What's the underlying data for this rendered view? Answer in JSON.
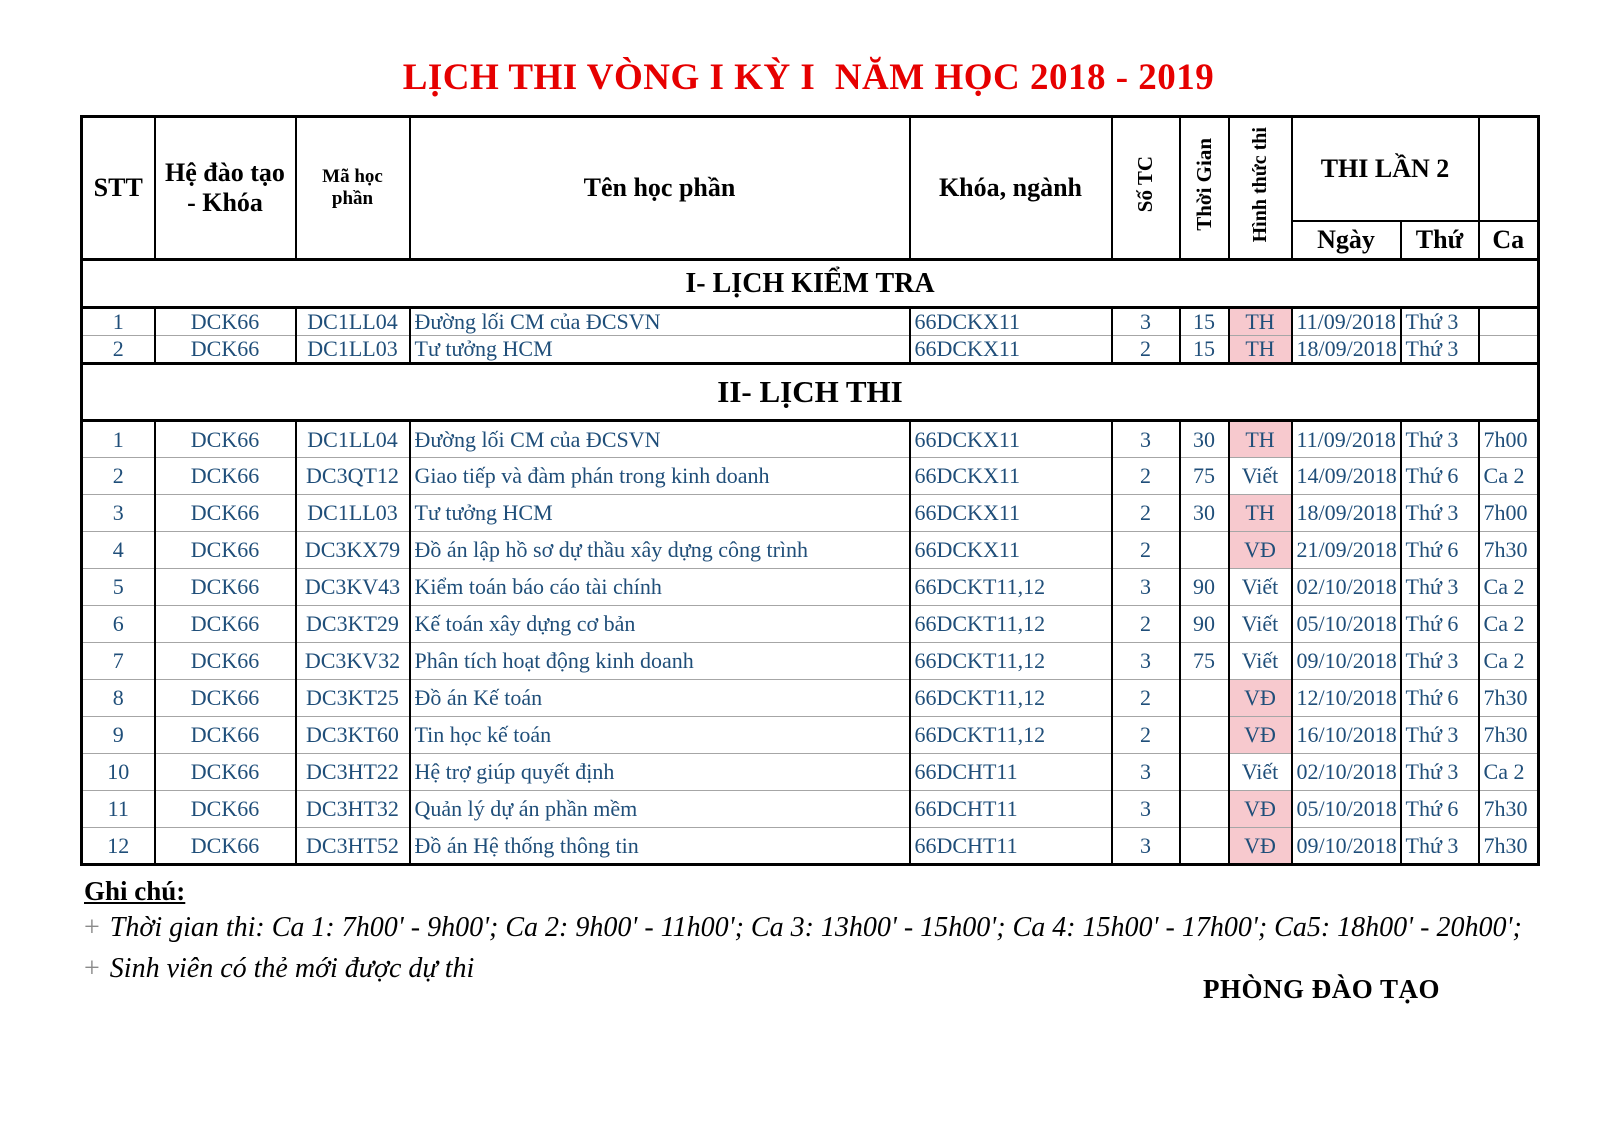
{
  "title": "LỊCH THI VÒNG I KỲ I  NĂM HỌC 2018 - 2019",
  "colors": {
    "title_red": "#e60000",
    "data_blue": "#1f4e79",
    "exam_red": "#c00000",
    "exam_pink": "#f7c9ce"
  },
  "table": {
    "headers": {
      "stt": "STT",
      "he_dao_tao_line1": "Hệ đào tạo",
      "he_dao_tao_line2": "- Khóa",
      "ma_hoc_phan": "Mã học phần",
      "ten_hoc_phan": "Tên học phần",
      "khoa_nganh": "Khóa, ngành",
      "so_tc": "Số TC",
      "thoi_gian": "Thời Gian",
      "hinh_thuc_thi": "Hình thức thi",
      "thi_lan_2": "THI LẦN 2",
      "ngay": "Ngày",
      "thu": "Thứ",
      "ca": "Ca"
    },
    "sections": [
      {
        "title": "I- LỊCH KIỂM TRA",
        "rows": [
          {
            "stt": "1",
            "he_dao_tao": "DCK66",
            "ma_hoc_phan": "DC1LL04",
            "ten_hoc_phan": "Đường lối CM của ĐCSVN",
            "khoa_nganh": "66DCKX11",
            "so_tc": "3",
            "thoi_gian": "15",
            "hinh_thuc": "TH",
            "hl": true,
            "ngay": "11/09/2018",
            "thu": "Thứ 3",
            "ca": ""
          },
          {
            "stt": "2",
            "he_dao_tao": "DCK66",
            "ma_hoc_phan": "DC1LL03",
            "ten_hoc_phan": "Tư tưởng HCM",
            "khoa_nganh": "66DCKX11",
            "so_tc": "2",
            "thoi_gian": "15",
            "hinh_thuc": "TH",
            "hl": true,
            "ngay": "18/09/2018",
            "thu": "Thứ 3",
            "ca": ""
          }
        ]
      },
      {
        "title": "II- LỊCH THI",
        "rows": [
          {
            "stt": "1",
            "he_dao_tao": "DCK66",
            "ma_hoc_phan": "DC1LL04",
            "ten_hoc_phan": "Đường lối CM của ĐCSVN",
            "khoa_nganh": "66DCKX11",
            "so_tc": "3",
            "thoi_gian": "30",
            "hinh_thuc": "TH",
            "hl": true,
            "ngay": "11/09/2018",
            "thu": "Thứ 3",
            "ca": "7h00"
          },
          {
            "stt": "2",
            "he_dao_tao": "DCK66",
            "ma_hoc_phan": "DC3QT12",
            "ten_hoc_phan": "Giao tiếp và đàm phán trong kinh doanh",
            "khoa_nganh": "66DCKX11",
            "so_tc": "2",
            "thoi_gian": "75",
            "hinh_thuc": "Viết",
            "hl": false,
            "ngay": "14/09/2018",
            "thu": "Thứ 6",
            "ca": "Ca 2"
          },
          {
            "stt": "3",
            "he_dao_tao": "DCK66",
            "ma_hoc_phan": "DC1LL03",
            "ten_hoc_phan": "Tư tưởng HCM",
            "khoa_nganh": "66DCKX11",
            "so_tc": "2",
            "thoi_gian": "30",
            "hinh_thuc": "TH",
            "hl": true,
            "ngay": "18/09/2018",
            "thu": "Thứ 3",
            "ca": "7h00"
          },
          {
            "stt": "4",
            "he_dao_tao": "DCK66",
            "ma_hoc_phan": "DC3KX79",
            "ten_hoc_phan": "Đồ án lập hồ sơ dự thầu xây dựng công trình",
            "khoa_nganh": "66DCKX11",
            "so_tc": "2",
            "thoi_gian": "",
            "hinh_thuc": "VĐ",
            "hl": true,
            "ngay": "21/09/2018",
            "thu": "Thứ 6",
            "ca": "7h30"
          },
          {
            "stt": "5",
            "he_dao_tao": "DCK66",
            "ma_hoc_phan": "DC3KV43",
            "ten_hoc_phan": "Kiểm toán báo cáo tài chính",
            "khoa_nganh": "66DCKT11,12",
            "so_tc": "3",
            "thoi_gian": "90",
            "hinh_thuc": "Viết",
            "hl": false,
            "ngay": "02/10/2018",
            "thu": "Thứ 3",
            "ca": "Ca 2"
          },
          {
            "stt": "6",
            "he_dao_tao": "DCK66",
            "ma_hoc_phan": "DC3KT29",
            "ten_hoc_phan": "Kế toán xây dựng cơ bản",
            "khoa_nganh": "66DCKT11,12",
            "so_tc": "2",
            "thoi_gian": "90",
            "hinh_thuc": "Viết",
            "hl": false,
            "ngay": "05/10/2018",
            "thu": "Thứ 6",
            "ca": "Ca 2"
          },
          {
            "stt": "7",
            "he_dao_tao": "DCK66",
            "ma_hoc_phan": "DC3KV32",
            "ten_hoc_phan": "Phân tích hoạt động kinh doanh",
            "khoa_nganh": "66DCKT11,12",
            "so_tc": "3",
            "thoi_gian": "75",
            "hinh_thuc": "Viết",
            "hl": false,
            "ngay": "09/10/2018",
            "thu": "Thứ 3",
            "ca": "Ca 2"
          },
          {
            "stt": "8",
            "he_dao_tao": "DCK66",
            "ma_hoc_phan": "DC3KT25",
            "ten_hoc_phan": "Đồ án Kế toán",
            "khoa_nganh": "66DCKT11,12",
            "so_tc": "2",
            "thoi_gian": "",
            "hinh_thuc": "VĐ",
            "hl": true,
            "ngay": "12/10/2018",
            "thu": "Thứ 6",
            "ca": "7h30"
          },
          {
            "stt": "9",
            "he_dao_tao": "DCK66",
            "ma_hoc_phan": "DC3KT60",
            "ten_hoc_phan": "Tin học kế toán",
            "khoa_nganh": "66DCKT11,12",
            "so_tc": "2",
            "thoi_gian": "",
            "hinh_thuc": "VĐ",
            "hl": true,
            "ngay": "16/10/2018",
            "thu": "Thứ 3",
            "ca": "7h30"
          },
          {
            "stt": "10",
            "he_dao_tao": "DCK66",
            "ma_hoc_phan": "DC3HT22",
            "ten_hoc_phan": "Hệ trợ giúp quyết định",
            "khoa_nganh": "66DCHT11",
            "so_tc": "3",
            "thoi_gian": "",
            "hinh_thuc": "Viết",
            "hl": false,
            "ngay": "02/10/2018",
            "thu": "Thứ 3",
            "ca": "Ca 2"
          },
          {
            "stt": "11",
            "he_dao_tao": "DCK66",
            "ma_hoc_phan": "DC3HT32",
            "ten_hoc_phan": "Quản lý dự án phần mềm",
            "khoa_nganh": "66DCHT11",
            "so_tc": "3",
            "thoi_gian": "",
            "hinh_thuc": "VĐ",
            "hl": true,
            "ngay": "05/10/2018",
            "thu": "Thứ 6",
            "ca": "7h30"
          },
          {
            "stt": "12",
            "he_dao_tao": "DCK66",
            "ma_hoc_phan": "DC3HT52",
            "ten_hoc_phan": "Đồ án Hệ thống thông tin",
            "khoa_nganh": "66DCHT11",
            "so_tc": "3",
            "thoi_gian": "",
            "hinh_thuc": "VĐ",
            "hl": true,
            "ngay": "09/10/2018",
            "thu": "Thứ 3",
            "ca": "7h30"
          }
        ]
      }
    ]
  },
  "notes": {
    "heading": "Ghi chú:",
    "bullet": "+",
    "line1": "Thời gian thi: Ca 1: 7h00' - 9h00'; Ca 2: 9h00' - 11h00'; Ca 3: 13h00' - 15h00'; Ca 4: 15h00' - 17h00'; Ca5: 18h00' - 20h00';",
    "line2": "Sinh viên có thẻ mới được dự thi",
    "signature": "PHÒNG ĐÀO TẠO"
  }
}
